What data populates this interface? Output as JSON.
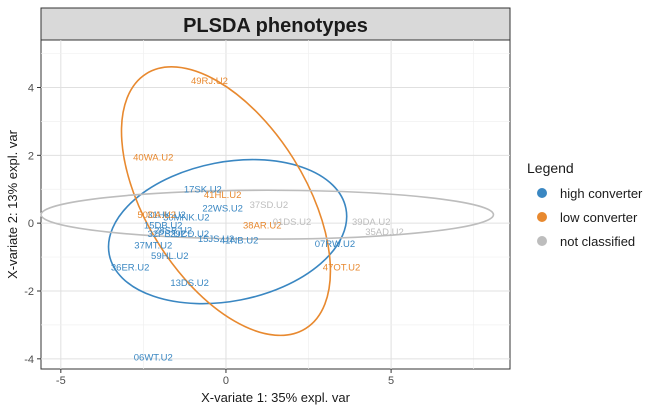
{
  "chart_data": {
    "type": "scatter",
    "title": "PLSDA phenotypes",
    "xlabel": "X-variate 1: 35% expl. var",
    "ylabel": "X-variate 2: 13% expl. var",
    "xlim": [
      -5.6,
      8.6
    ],
    "ylim": [
      -4.3,
      5.4
    ],
    "x_ticks": [
      -5,
      0,
      5
    ],
    "y_ticks": [
      -4,
      -2,
      0,
      2,
      4
    ],
    "grid": true,
    "legend": {
      "title": "Legend",
      "placement": "right",
      "entries": [
        "high converter",
        "low converter",
        "not classified"
      ]
    },
    "colors": {
      "high converter": "#3a87c2",
      "low converter": "#e8892f",
      "not classified": "#bdbdbd",
      "panel_background": "#ebebeb",
      "grid": "#d9d9d9",
      "strip": "#d9d9d9"
    },
    "series": [
      {
        "name": "high converter",
        "color": "#3a87c2",
        "ellipse": {
          "cx": 0.05,
          "cy": -0.25,
          "rx": 3.65,
          "ry": 2.05,
          "angle_deg": 11
        },
        "points": [
          {
            "label": "17SK.U2",
            "x": -0.7,
            "y": 1.0
          },
          {
            "label": "22WS.U2",
            "x": -0.1,
            "y": 0.45
          },
          {
            "label": "31HK.U2",
            "x": -1.8,
            "y": 0.25
          },
          {
            "label": "30MNK.U2",
            "x": -1.2,
            "y": 0.18
          },
          {
            "label": "15DB.U2",
            "x": -1.9,
            "y": -0.05
          },
          {
            "label": "28SB.U2",
            "x": -1.6,
            "y": -0.2
          },
          {
            "label": "32PB.U2",
            "x": -1.8,
            "y": -0.3
          },
          {
            "label": "29CD.U2",
            "x": -1.1,
            "y": -0.3
          },
          {
            "label": "15JS.U2",
            "x": -0.3,
            "y": -0.45
          },
          {
            "label": "41NB.U2",
            "x": 0.4,
            "y": -0.5
          },
          {
            "label": "37MT.U2",
            "x": -2.2,
            "y": -0.65
          },
          {
            "label": "59HL.U2",
            "x": -1.7,
            "y": -0.95
          },
          {
            "label": "36ER.U2",
            "x": -2.9,
            "y": -1.3
          },
          {
            "label": "13DS.U2",
            "x": -1.1,
            "y": -1.75
          },
          {
            "label": "07RW.U2",
            "x": 3.3,
            "y": -0.6
          },
          {
            "label": "06WT.U2",
            "x": -2.2,
            "y": -3.95
          }
        ]
      },
      {
        "name": "low converter",
        "color": "#e8892f",
        "ellipse": {
          "cx": 0.0,
          "cy": 0.65,
          "rx": 4.55,
          "ry": 2.35,
          "angle_deg": -58
        },
        "points": [
          {
            "label": "49RJ.U2",
            "x": -0.5,
            "y": 4.2
          },
          {
            "label": "40WA.U2",
            "x": -2.2,
            "y": 1.95
          },
          {
            "label": "41HL.U2",
            "x": -0.1,
            "y": 0.85
          },
          {
            "label": "50DA.U2",
            "x": -2.1,
            "y": 0.25
          },
          {
            "label": "38AR.U2",
            "x": 1.1,
            "y": -0.05
          },
          {
            "label": "47OT.U2",
            "x": 3.5,
            "y": -1.3
          }
        ]
      },
      {
        "name": "not classified",
        "color": "#bdbdbd",
        "ellipse": {
          "cx": 1.25,
          "cy": 0.25,
          "rx": 6.85,
          "ry": 0.72,
          "angle_deg": 0
        },
        "points": [
          {
            "label": "37SD.U2",
            "x": 1.3,
            "y": 0.55
          },
          {
            "label": "01DS.U2",
            "x": 2.0,
            "y": 0.05
          },
          {
            "label": "39DA.U2",
            "x": 4.4,
            "y": 0.05
          },
          {
            "label": "35AD.U2",
            "x": 4.8,
            "y": -0.25
          }
        ]
      }
    ]
  }
}
